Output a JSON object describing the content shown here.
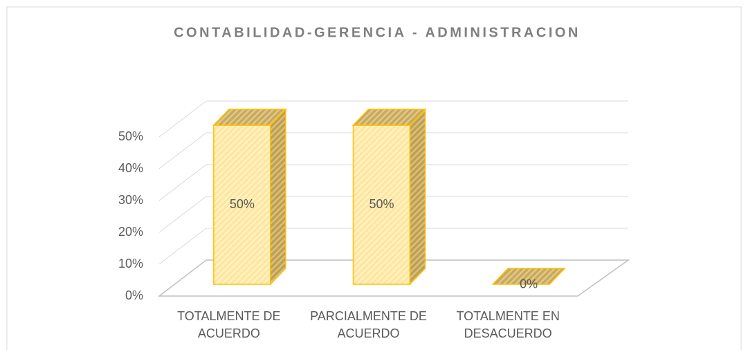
{
  "chart_data": {
    "type": "bar3d",
    "title": "CONTABILIDAD-GERENCIA - ADMINISTRACION",
    "categories": [
      "TOTALMENTE DE ACUERDO",
      "PARCIALMENTE DE ACUERDO",
      "TOTALMENTE EN DESACUERDO"
    ],
    "values": [
      50,
      50,
      0
    ],
    "value_labels": [
      "50%",
      "50%",
      "0%"
    ],
    "color": "#ffc000",
    "ylim": [
      0,
      50
    ],
    "yticks": [
      {
        "value": 0,
        "label": "0%"
      },
      {
        "value": 10,
        "label": "10%"
      },
      {
        "value": 20,
        "label": "20%"
      },
      {
        "value": 30,
        "label": "30%"
      },
      {
        "value": 40,
        "label": "40%"
      },
      {
        "value": 50,
        "label": "50%"
      }
    ],
    "grid": true
  }
}
